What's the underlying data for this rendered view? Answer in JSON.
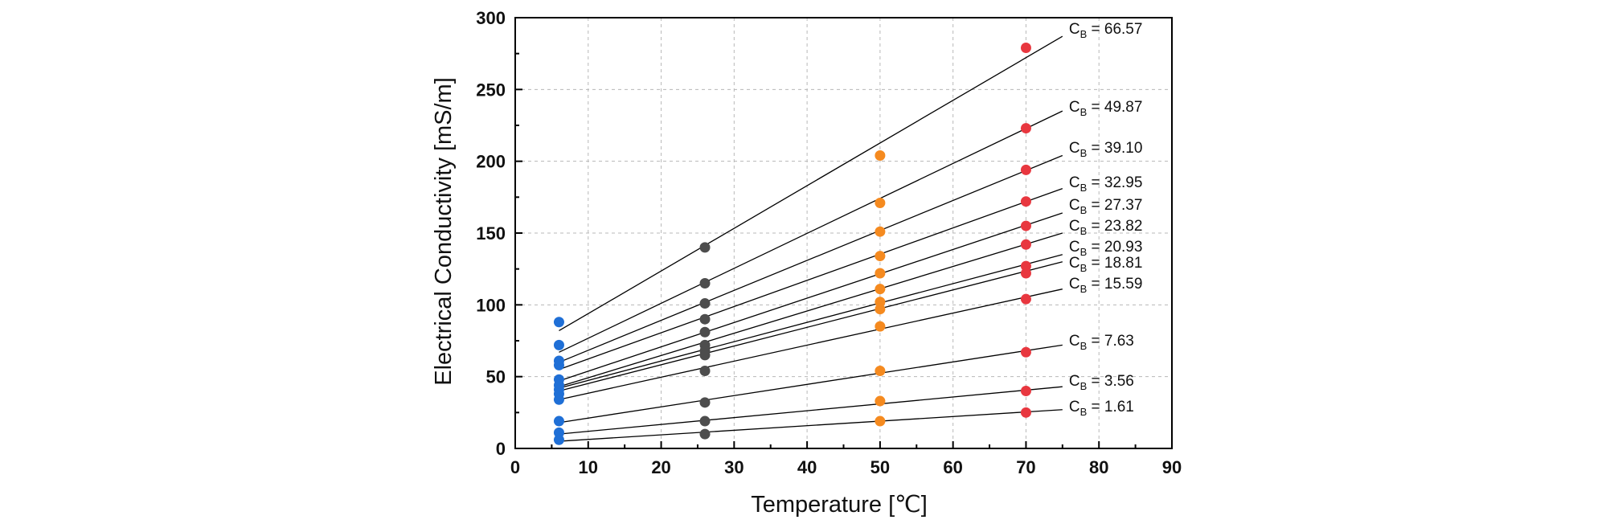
{
  "chart_data": {
    "type": "scatter",
    "xlabel": "Temperature [℃]",
    "ylabel": "Electrical Conductivity [mS/m]",
    "xlim": [
      0,
      90
    ],
    "ylim": [
      0,
      300
    ],
    "xticks": [
      0,
      10,
      20,
      30,
      40,
      50,
      60,
      70,
      80,
      90
    ],
    "yticks": [
      0,
      50,
      100,
      150,
      200,
      250,
      300
    ],
    "grid": true,
    "point_colors": {
      "6": "#1f6fd6",
      "26": "#4d4d4d",
      "50": "#f58a1f",
      "70": "#e8373f"
    },
    "x": [
      6,
      26,
      50,
      70
    ],
    "series": [
      {
        "label": "66.57",
        "values": [
          88,
          140,
          204,
          279
        ],
        "fit": [
          [
            6,
            82
          ],
          [
            75,
            287
          ]
        ]
      },
      {
        "label": "49.87",
        "values": [
          72,
          115,
          171,
          223
        ],
        "fit": [
          [
            6,
            67
          ],
          [
            75,
            235
          ]
        ]
      },
      {
        "label": "39.10",
        "values": [
          61,
          101,
          151,
          194
        ],
        "fit": [
          [
            6,
            60
          ],
          [
            75,
            204
          ]
        ]
      },
      {
        "label": "32.95",
        "values": [
          58,
          90,
          134,
          172
        ],
        "fit": [
          [
            6,
            55
          ],
          [
            75,
            181
          ]
        ]
      },
      {
        "label": "27.37",
        "values": [
          48,
          81,
          122,
          155
        ],
        "fit": [
          [
            6,
            47
          ],
          [
            75,
            164
          ]
        ]
      },
      {
        "label": "23.82",
        "values": [
          44,
          72,
          111,
          142
        ],
        "fit": [
          [
            6,
            43
          ],
          [
            75,
            150
          ]
        ]
      },
      {
        "label": "20.93",
        "values": [
          41,
          68,
          102,
          127
        ],
        "fit": [
          [
            6,
            42
          ],
          [
            75,
            135
          ]
        ]
      },
      {
        "label": "18.81",
        "values": [
          38,
          65,
          97,
          122
        ],
        "fit": [
          [
            6,
            40
          ],
          [
            75,
            130
          ]
        ]
      },
      {
        "label": "15.59",
        "values": [
          34,
          54,
          85,
          104
        ],
        "fit": [
          [
            6,
            34
          ],
          [
            75,
            111
          ]
        ]
      },
      {
        "label": "7.63",
        "values": [
          19,
          32,
          54,
          67
        ],
        "fit": [
          [
            6,
            18
          ],
          [
            75,
            72
          ]
        ]
      },
      {
        "label": "3.56",
        "values": [
          11,
          19,
          33,
          40
        ],
        "fit": [
          [
            6,
            10
          ],
          [
            75,
            43
          ]
        ]
      },
      {
        "label": "1.61",
        "values": [
          6,
          10,
          19,
          25
        ],
        "fit": [
          [
            6,
            5
          ],
          [
            75,
            27
          ]
        ]
      }
    ],
    "line_label_prefix": "C",
    "line_label_sub": "B",
    "line_label_eq": " = "
  }
}
